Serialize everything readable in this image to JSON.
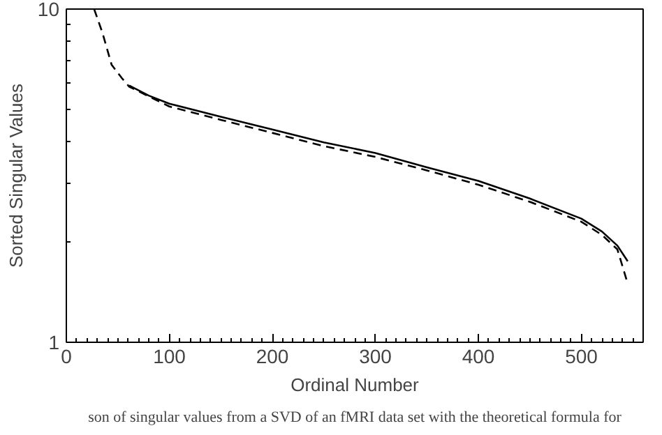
{
  "chart_data": {
    "type": "line",
    "xlabel": "Ordinal Number",
    "ylabel": "Sorted Singular Values",
    "log": "y",
    "xlim": [
      0,
      560
    ],
    "ylim": [
      1,
      10
    ],
    "xticks": [
      0,
      100,
      200,
      300,
      400,
      500
    ],
    "yticks": [
      1,
      10
    ],
    "grid": false,
    "series": [
      {
        "color": "#000000",
        "line_style": "solid",
        "x": [
          61,
          80,
          100,
          150,
          200,
          250,
          300,
          350,
          400,
          450,
          500,
          520,
          535,
          545
        ],
        "values": [
          5.9,
          5.5,
          5.2,
          4.75,
          4.35,
          3.98,
          3.7,
          3.35,
          3.05,
          2.7,
          2.35,
          2.15,
          1.95,
          1.75
        ]
      },
      {
        "color": "#000000",
        "line_style": "dashed",
        "x": [
          27,
          35,
          44,
          54,
          61,
          100,
          150,
          200,
          250,
          300,
          350,
          400,
          450,
          500,
          520,
          535,
          545
        ],
        "values": [
          10,
          8.5,
          6.8,
          6.2,
          5.85,
          5.1,
          4.65,
          4.25,
          3.88,
          3.6,
          3.28,
          2.97,
          2.64,
          2.3,
          2.1,
          1.9,
          1.5
        ]
      }
    ],
    "annotations": [
      "son of singular values from a SVD of an fMRI data set with the theoretical formula for"
    ]
  }
}
